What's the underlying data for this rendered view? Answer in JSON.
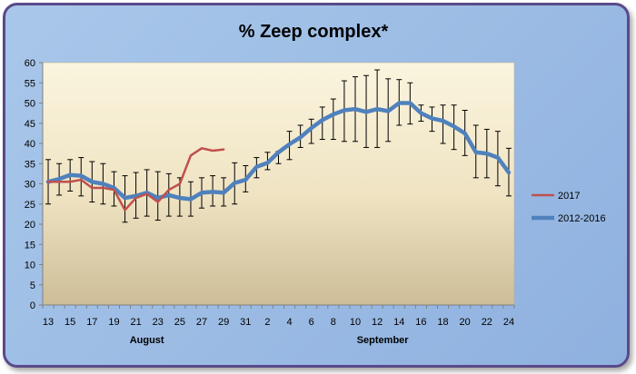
{
  "chart_data": {
    "type": "line",
    "title": "% Zeep complex*",
    "xlabel": "",
    "ylabel": "",
    "ylim": [
      0,
      60
    ],
    "yticks": [
      0,
      5,
      10,
      15,
      20,
      25,
      30,
      35,
      40,
      45,
      50,
      55,
      60
    ],
    "x_groups": [
      {
        "label": "August",
        "from": 0,
        "to": 18
      },
      {
        "label": "September",
        "from": 19,
        "to": 42
      }
    ],
    "categories": [
      "13",
      "14",
      "15",
      "16",
      "17",
      "18",
      "19",
      "20",
      "21",
      "22",
      "23",
      "24",
      "25",
      "26",
      "27",
      "28",
      "29",
      "30",
      "31",
      "1",
      "2",
      "3",
      "4",
      "5",
      "6",
      "7",
      "8",
      "9",
      "10",
      "11",
      "12",
      "13",
      "14",
      "15",
      "16",
      "17",
      "18",
      "19",
      "20",
      "21",
      "22",
      "23",
      "24"
    ],
    "tick_labels": [
      "13",
      "",
      "15",
      "",
      "17",
      "",
      "19",
      "",
      "21",
      "",
      "23",
      "",
      "25",
      "",
      "27",
      "",
      "29",
      "",
      "31",
      "",
      "2",
      "",
      "4",
      "",
      "6",
      "",
      "8",
      "",
      "10",
      "",
      "12",
      "",
      "14",
      "",
      "16",
      "",
      "18",
      "",
      "20",
      "",
      "22",
      "",
      "24"
    ],
    "grid": false,
    "legend_position": "right",
    "series": [
      {
        "name": "2017",
        "color": "#c0504d",
        "values": [
          30.5,
          30.5,
          30.5,
          31,
          29,
          29,
          28.5,
          23.5,
          26.5,
          27.5,
          25.5,
          28.5,
          30,
          37,
          38.8,
          38.2,
          38.5,
          null,
          null,
          null,
          null,
          null,
          null,
          null,
          null,
          null,
          null,
          null,
          null,
          null,
          null,
          null,
          null,
          null,
          null,
          null,
          null,
          null,
          null,
          null,
          null,
          null,
          null
        ]
      },
      {
        "name": "2012-2016",
        "color": "#4f81bd",
        "values": [
          30.5,
          31.2,
          32.2,
          32,
          30.5,
          30,
          29,
          26.5,
          27,
          27.8,
          26.5,
          27.2,
          26.5,
          26.2,
          27.8,
          28,
          27.8,
          30.2,
          31,
          34.2,
          35.2,
          37.8,
          39.8,
          41.5,
          43.8,
          45.8,
          47.2,
          48.2,
          48.5,
          47.8,
          48.5,
          48,
          50,
          50,
          47.5,
          46.2,
          45.6,
          44.2,
          42.5,
          37.8,
          37.5,
          36.5,
          32.8
        ],
        "error_low": [
          25,
          27.2,
          28.2,
          27,
          25.5,
          25,
          24.5,
          20.5,
          21.5,
          22,
          21,
          22,
          22,
          22,
          24,
          24.5,
          24.5,
          25,
          28,
          31.5,
          33.5,
          35,
          36,
          39,
          40,
          41,
          41,
          40.5,
          40.5,
          39,
          39,
          40.5,
          44.5,
          44.8,
          45.5,
          43,
          40,
          38.5,
          37,
          31.5,
          31.5,
          29.5,
          27
        ],
        "error_high": [
          36,
          35,
          36,
          36.5,
          35.5,
          35,
          33,
          32,
          32.8,
          33.5,
          33,
          32.5,
          31.5,
          30.5,
          31.5,
          32,
          31.5,
          35.2,
          34.5,
          36.5,
          37.8,
          38,
          43,
          44.5,
          46,
          49,
          51,
          55.5,
          56.5,
          56.8,
          58.2,
          56,
          55.8,
          55,
          49.5,
          49,
          49.5,
          49.5,
          48.2,
          44.5,
          43.5,
          43,
          38.8
        ]
      }
    ]
  }
}
